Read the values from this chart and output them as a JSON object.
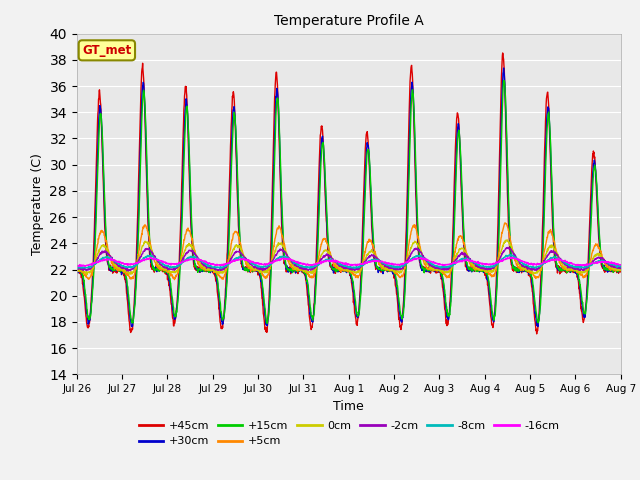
{
  "title": "Temperature Profile A",
  "xlabel": "Time",
  "ylabel": "Temperature (C)",
  "ylim": [
    14,
    40
  ],
  "yticks": [
    14,
    16,
    18,
    20,
    22,
    24,
    26,
    28,
    30,
    32,
    34,
    36,
    38,
    40
  ],
  "annotation_text": "GT_met",
  "annotation_color": "#cc0000",
  "annotation_bg": "#ffff99",
  "annotation_border": "#888800",
  "plot_bg_color": "#e8e8e8",
  "fig_bg_color": "#f2f2f2",
  "series_labels": [
    "+45cm",
    "+30cm",
    "+15cm",
    "+5cm",
    "0cm",
    "-2cm",
    "-8cm",
    "-16cm"
  ],
  "series_colors": [
    "#dd0000",
    "#0000cc",
    "#00cc00",
    "#ff8800",
    "#cccc00",
    "#9900bb",
    "#00bbbb",
    "#ff00ff"
  ],
  "tick_labels": [
    "Jul 26",
    "Jul 27",
    "Jul 28",
    "Jul 29",
    "Jul 30",
    "Jul 31",
    "Aug 1",
    "Aug 2",
    "Aug 3",
    "Aug 4",
    "Aug 5",
    "Aug 6",
    "Aug 7"
  ],
  "n_days": 12,
  "pts_per_day": 144,
  "grid_color": "#ffffff",
  "legend_row1": [
    "+45cm",
    "+30cm",
    "+15cm",
    "+5cm",
    "0cm",
    "-2cm"
  ],
  "legend_row2": [
    "-8cm",
    "-16cm"
  ]
}
